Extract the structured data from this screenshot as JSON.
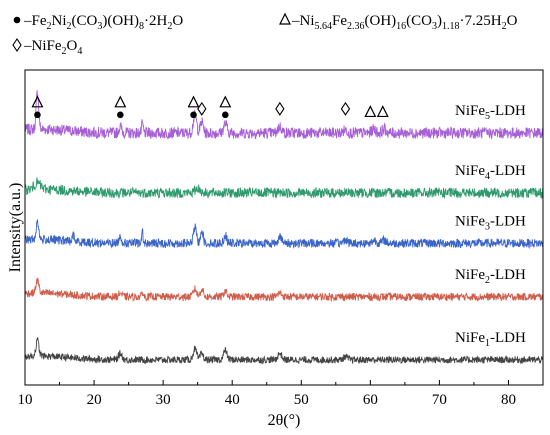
{
  "chart_data": {
    "type": "line",
    "xlabel": "2θ(°)",
    "ylabel": "Intensity(a.u.)",
    "xlim": [
      10,
      85
    ],
    "xticks": [
      10,
      20,
      30,
      40,
      50,
      60,
      70,
      80
    ],
    "legend": [
      {
        "symbol": "dot",
        "parts": [
          {
            "t": "–Fe"
          },
          {
            "t": "2",
            "sub": true
          },
          {
            "t": "Ni"
          },
          {
            "t": "2",
            "sub": true
          },
          {
            "t": "(CO"
          },
          {
            "t": "3",
            "sub": true
          },
          {
            "t": ")(OH)"
          },
          {
            "t": "8",
            "sub": true
          },
          {
            "t": "·2H"
          },
          {
            "t": "2",
            "sub": true
          },
          {
            "t": "O"
          }
        ]
      },
      {
        "symbol": "triangle",
        "parts": [
          {
            "t": "–Ni"
          },
          {
            "t": "5.64",
            "sub": true
          },
          {
            "t": "Fe"
          },
          {
            "t": "2.36",
            "sub": true
          },
          {
            "t": "(OH)"
          },
          {
            "t": "16",
            "sub": true
          },
          {
            "t": "(CO"
          },
          {
            "t": "3",
            "sub": true
          },
          {
            "t": ")"
          },
          {
            "t": "1.18",
            "sub": true
          },
          {
            "t": "·7.25H"
          },
          {
            "t": "2",
            "sub": true
          },
          {
            "t": "O"
          }
        ]
      },
      {
        "symbol": "diamond",
        "parts": [
          {
            "t": "–NiFe"
          },
          {
            "t": "2",
            "sub": true
          },
          {
            "t": "O"
          },
          {
            "t": "4",
            "sub": true
          }
        ]
      }
    ],
    "series": [
      {
        "name_parts": [
          {
            "t": "NiFe"
          },
          {
            "t": "5",
            "sub": true
          },
          {
            "t": "-LDH"
          }
        ],
        "color": "#a65fd6",
        "base": 0.8,
        "noise": 0.018,
        "peaks": [
          [
            11.8,
            0.12,
            0.25
          ],
          [
            23.8,
            0.02,
            0.3
          ],
          [
            27.0,
            0.03,
            0.15
          ],
          [
            34.6,
            0.055,
            0.35
          ],
          [
            35.6,
            0.035,
            0.3
          ],
          [
            39.0,
            0.03,
            0.35
          ],
          [
            46.9,
            0.02,
            0.4
          ],
          [
            56.4,
            0.01,
            0.4
          ],
          [
            60.5,
            0.012,
            0.4
          ],
          [
            62.0,
            0.012,
            0.4
          ]
        ]
      },
      {
        "name_parts": [
          {
            "t": "NiFe"
          },
          {
            "t": "4",
            "sub": true
          },
          {
            "t": "-LDH"
          }
        ],
        "color": "#2f9a6e",
        "base": 0.61,
        "noise": 0.016,
        "peaks": [
          [
            11.8,
            0.02,
            0.6
          ],
          [
            35.0,
            0.015,
            0.5
          ]
        ]
      },
      {
        "name_parts": [
          {
            "t": "NiFe"
          },
          {
            "t": "3",
            "sub": true
          },
          {
            "t": "-LDH"
          }
        ],
        "color": "#3a64c8",
        "base": 0.45,
        "noise": 0.014,
        "peaks": [
          [
            11.8,
            0.06,
            0.25
          ],
          [
            17.0,
            0.02,
            0.2
          ],
          [
            23.8,
            0.02,
            0.3
          ],
          [
            27.0,
            0.045,
            0.12
          ],
          [
            34.6,
            0.05,
            0.3
          ],
          [
            35.6,
            0.045,
            0.25
          ],
          [
            39.0,
            0.025,
            0.3
          ],
          [
            46.9,
            0.025,
            0.3
          ],
          [
            56.4,
            0.012,
            0.4
          ],
          [
            60.6,
            0.01,
            0.4
          ],
          [
            62.0,
            0.01,
            0.4
          ]
        ]
      },
      {
        "name_parts": [
          {
            "t": "NiFe"
          },
          {
            "t": "2",
            "sub": true
          },
          {
            "t": "-LDH"
          }
        ],
        "color": "#d05c4a",
        "base": 0.28,
        "noise": 0.012,
        "peaks": [
          [
            11.8,
            0.04,
            0.3
          ],
          [
            23.8,
            0.012,
            0.3
          ],
          [
            27.0,
            0.015,
            0.15
          ],
          [
            34.6,
            0.025,
            0.35
          ],
          [
            35.6,
            0.025,
            0.3
          ],
          [
            39.0,
            0.02,
            0.3
          ],
          [
            46.9,
            0.012,
            0.4
          ]
        ]
      },
      {
        "name_parts": [
          {
            "t": "NiFe"
          },
          {
            "t": "1",
            "sub": true
          },
          {
            "t": "-LDH"
          }
        ],
        "color": "#444444",
        "base": 0.08,
        "noise": 0.011,
        "peaks": [
          [
            11.8,
            0.05,
            0.3
          ],
          [
            23.8,
            0.02,
            0.35
          ],
          [
            34.6,
            0.035,
            0.35
          ],
          [
            35.6,
            0.02,
            0.3
          ],
          [
            39.0,
            0.03,
            0.35
          ],
          [
            46.9,
            0.02,
            0.4
          ],
          [
            56.4,
            0.01,
            0.4
          ]
        ]
      }
    ],
    "markers": [
      {
        "symbol": "triangle",
        "x": 11.8,
        "level": 1
      },
      {
        "symbol": "dot",
        "x": 11.8,
        "level": 0
      },
      {
        "symbol": "triangle",
        "x": 23.8,
        "level": 1
      },
      {
        "symbol": "dot",
        "x": 23.8,
        "level": 0
      },
      {
        "symbol": "triangle",
        "x": 34.4,
        "level": 1
      },
      {
        "symbol": "dot",
        "x": 34.4,
        "level": 0
      },
      {
        "symbol": "diamond",
        "x": 35.6,
        "level": 0.5
      },
      {
        "symbol": "triangle",
        "x": 39.0,
        "level": 1
      },
      {
        "symbol": "dot",
        "x": 39.0,
        "level": 0
      },
      {
        "symbol": "diamond",
        "x": 46.9,
        "level": 0.5
      },
      {
        "symbol": "diamond",
        "x": 56.4,
        "level": 0.5
      },
      {
        "symbol": "triangle",
        "x": 60.0,
        "level": 0.2
      },
      {
        "symbol": "triangle",
        "x": 61.8,
        "level": 0.2
      }
    ]
  }
}
